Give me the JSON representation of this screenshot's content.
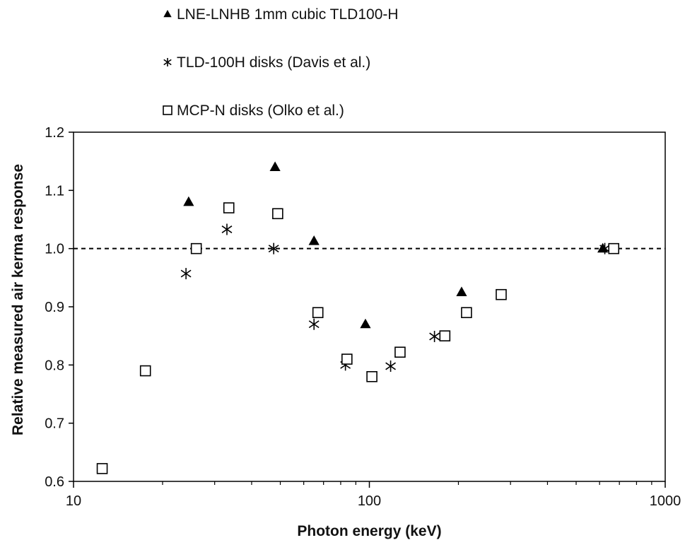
{
  "chart_data": {
    "type": "scatter",
    "title": "",
    "xlabel": "Photon energy (keV)",
    "ylabel": "Relative measured air kerma response",
    "x_scale": "log",
    "xlim": [
      10,
      1000
    ],
    "ylim": [
      0.6,
      1.2
    ],
    "x_ticks": [
      10,
      100,
      1000
    ],
    "x_tick_labels": [
      "10",
      "100",
      "1000"
    ],
    "y_ticks": [
      0.6,
      0.7,
      0.8,
      0.9,
      1.0,
      1.1,
      1.2
    ],
    "y_tick_labels": [
      "0.6",
      "0.7",
      "0.8",
      "0.9",
      "1.0",
      "1.1",
      "1.2"
    ],
    "grid": false,
    "legend_position": "top-left, above plot",
    "reference_line": {
      "y": 1.0,
      "style": "dashed"
    },
    "series": [
      {
        "name": "LNE-LNHB 1mm cubic TLD100-H",
        "marker": "filled-triangle",
        "points": [
          {
            "x": 24.5,
            "y": 1.08
          },
          {
            "x": 48,
            "y": 1.14
          },
          {
            "x": 65,
            "y": 1.013
          },
          {
            "x": 97,
            "y": 0.87
          },
          {
            "x": 205,
            "y": 0.925
          },
          {
            "x": 615,
            "y": 1.0
          }
        ]
      },
      {
        "name": "TLD-100H disks (Davis et al.)",
        "marker": "asterisk",
        "points": [
          {
            "x": 24,
            "y": 0.957
          },
          {
            "x": 33,
            "y": 1.033
          },
          {
            "x": 47.5,
            "y": 1.0
          },
          {
            "x": 65,
            "y": 0.87
          },
          {
            "x": 83,
            "y": 0.8
          },
          {
            "x": 118,
            "y": 0.798
          },
          {
            "x": 166,
            "y": 0.849
          },
          {
            "x": 625,
            "y": 1.0
          }
        ]
      },
      {
        "name": "MCP-N disks (Olko et al.)",
        "marker": "open-square",
        "points": [
          {
            "x": 12.5,
            "y": 0.622
          },
          {
            "x": 17.5,
            "y": 0.79
          },
          {
            "x": 26,
            "y": 1.0
          },
          {
            "x": 33.5,
            "y": 1.07
          },
          {
            "x": 49,
            "y": 1.06
          },
          {
            "x": 67,
            "y": 0.89
          },
          {
            "x": 84,
            "y": 0.81
          },
          {
            "x": 102,
            "y": 0.78
          },
          {
            "x": 127,
            "y": 0.822
          },
          {
            "x": 180,
            "y": 0.85
          },
          {
            "x": 213,
            "y": 0.89
          },
          {
            "x": 279,
            "y": 0.921
          },
          {
            "x": 670,
            "y": 1.0
          }
        ]
      }
    ]
  }
}
